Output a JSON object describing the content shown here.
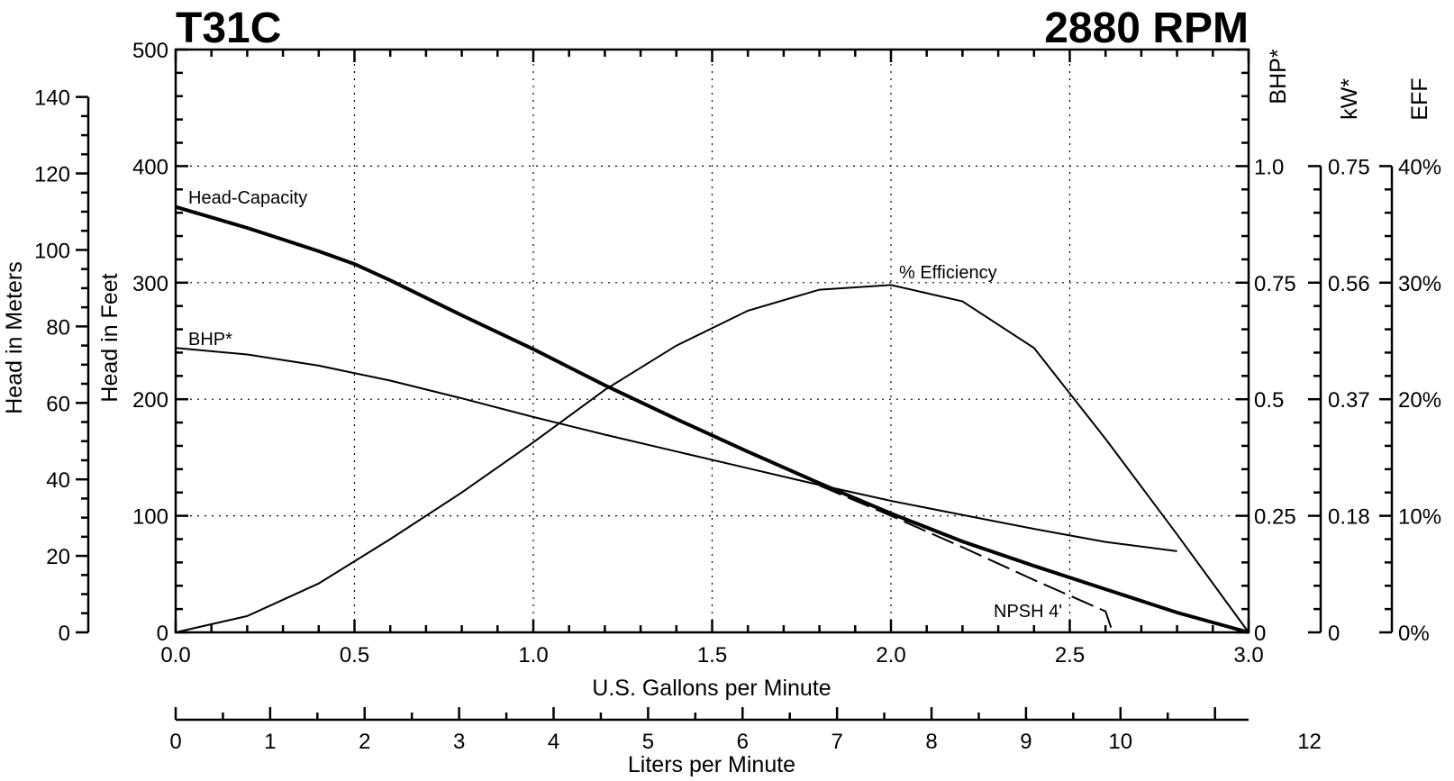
{
  "chart_data": {
    "type": "line",
    "title_left": "T31C",
    "title_right": "2880 RPM",
    "xlabel": "U.S. Gallons per Minute",
    "x2label": "Liters per Minute",
    "ylabel_feet": "Head in Feet",
    "ylabel_meters": "Head in Meters",
    "right_axes_titles": {
      "bhp": "BHP*",
      "kw": "kW*",
      "eff": "EFF"
    },
    "xlim": [
      0,
      3
    ],
    "ylim_feet": [
      0,
      500
    ],
    "ylim_meters": [
      0,
      152.4
    ],
    "ylim_bhp": [
      0,
      1.0
    ],
    "ylim_eff": [
      0,
      40
    ],
    "grid": true,
    "x_ticks": [
      "0.0",
      "0.5",
      "1.0",
      "1.5",
      "2.0",
      "2.5",
      "3.0"
    ],
    "x_tick_values": [
      0,
      0.5,
      1.0,
      1.5,
      2.0,
      2.5,
      3.0
    ],
    "liters_ticks": [
      "0",
      "1",
      "2",
      "3",
      "4",
      "5",
      "6",
      "7",
      "8",
      "9",
      "10",
      "12"
    ],
    "liters_tick_values": [
      0,
      1,
      2,
      3,
      4,
      5,
      6,
      7,
      8,
      9,
      10,
      12
    ],
    "liters_range": [
      0,
      11.356
    ],
    "feet_ticks": [
      "0",
      "100",
      "200",
      "300",
      "400",
      "500"
    ],
    "feet_tick_values": [
      0,
      100,
      200,
      300,
      400,
      500
    ],
    "meters_ticks": [
      "0",
      "20",
      "40",
      "60",
      "80",
      "100",
      "120",
      "140"
    ],
    "meters_tick_values": [
      0,
      20,
      40,
      60,
      80,
      100,
      120,
      140
    ],
    "bhp_ticks": [
      "0",
      "0.25",
      "0.5",
      "0.75",
      "1.0"
    ],
    "bhp_tick_values": [
      0,
      0.25,
      0.5,
      0.75,
      1.0
    ],
    "kw_ticks": [
      "0",
      "0.18",
      "0.37",
      "0.56",
      "0.75"
    ],
    "kw_tick_values": [
      0,
      0.18,
      0.37,
      0.56,
      0.75
    ],
    "eff_ticks": [
      "0%",
      "10%",
      "20%",
      "30%",
      "40%"
    ],
    "eff_tick_values": [
      0,
      10,
      20,
      30,
      40
    ],
    "series": [
      {
        "name": "Head-Capacity",
        "axis": "feet",
        "style": "thick",
        "x": [
          0,
          0.1,
          0.2,
          0.3,
          0.4,
          0.5,
          0.6,
          0.8,
          1.0,
          1.2,
          1.4,
          1.6,
          1.8,
          2.0,
          2.2,
          2.4,
          2.6,
          2.8,
          3.0
        ],
        "values": [
          365,
          356,
          347,
          337,
          327,
          316,
          302,
          272,
          243,
          212,
          183,
          155,
          128,
          102,
          78,
          57,
          37,
          17,
          0
        ]
      },
      {
        "name": "BHP*",
        "axis": "bhp",
        "style": "thin",
        "x": [
          0,
          0.2,
          0.4,
          0.6,
          0.8,
          1.0,
          1.2,
          1.4,
          1.6,
          1.8,
          2.0,
          2.2,
          2.4,
          2.6,
          2.8
        ],
        "values": [
          0.61,
          0.596,
          0.572,
          0.54,
          0.502,
          0.462,
          0.424,
          0.388,
          0.352,
          0.316,
          0.282,
          0.252,
          0.222,
          0.194,
          0.174
        ]
      },
      {
        "name": "% Efficiency",
        "axis": "eff",
        "style": "thin",
        "x": [
          0,
          0.2,
          0.4,
          0.6,
          0.8,
          1.0,
          1.2,
          1.4,
          1.6,
          1.8,
          2.0,
          2.2,
          2.4,
          2.6,
          2.8,
          3.0
        ],
        "values": [
          0,
          1.4,
          4.2,
          8.0,
          12.0,
          16.3,
          20.8,
          24.6,
          27.6,
          29.4,
          29.8,
          28.4,
          24.4,
          16.6,
          8.4,
          0
        ]
      },
      {
        "name": "NPSH",
        "axis": "feet",
        "style": "dashed",
        "x": [
          1.8,
          2.0,
          2.2,
          2.4,
          2.6,
          2.62
        ],
        "values": [
          126,
          100,
          73,
          45,
          18,
          0
        ]
      }
    ],
    "annotations": [
      "Head-Capacity",
      "BHP*",
      "% Efficiency",
      "NPSH  4'"
    ]
  }
}
